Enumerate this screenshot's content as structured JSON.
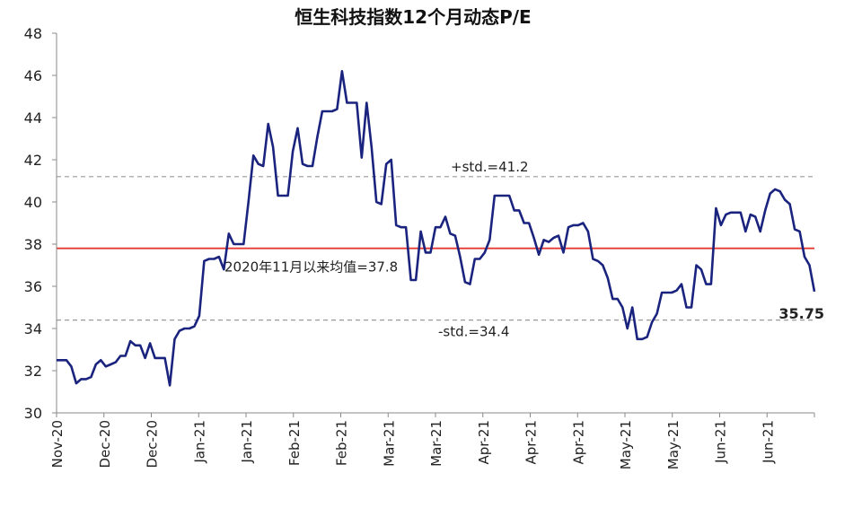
{
  "chart_data": {
    "type": "line",
    "title": "恒生科技指数12个月动态P/E",
    "xlabel": "",
    "ylabel": "",
    "ylim": [
      30,
      48
    ],
    "yticks": [
      30,
      32,
      34,
      36,
      38,
      40,
      42,
      44,
      46,
      48
    ],
    "xtick_labels": [
      "Nov-20",
      "Dec-20",
      "Dec-20",
      "Jan-21",
      "Jan-21",
      "Feb-21",
      "Feb-21",
      "Mar-21",
      "Mar-21",
      "Apr-21",
      "Apr-21",
      "Apr-21",
      "May-21",
      "May-21",
      "Jun-21",
      "Jun-21"
    ],
    "grid": false,
    "colors": {
      "series": "#1a237e",
      "mean": "#e53935",
      "std": "#999999"
    },
    "series": [
      {
        "values": [
          32.5,
          32.5,
          32.5,
          32.2,
          31.4,
          31.6,
          31.6,
          31.7,
          32.3,
          32.5,
          32.2,
          32.3,
          32.4,
          32.7,
          32.7,
          33.4,
          33.2,
          33.2,
          32.6,
          33.3,
          32.6,
          32.6,
          32.6,
          31.3,
          33.5,
          33.9,
          34.0,
          34.0,
          34.1,
          34.6,
          37.2,
          37.3,
          37.3,
          37.4,
          36.8,
          38.5,
          38.0,
          38.0,
          38.0,
          40.0,
          42.2,
          41.8,
          41.7,
          43.7,
          42.6,
          40.3,
          40.3,
          40.3,
          42.4,
          43.5,
          41.8,
          41.7,
          41.7,
          43.1,
          44.3,
          44.3,
          44.3,
          44.4,
          46.2,
          44.7,
          44.7,
          44.7,
          42.1,
          44.7,
          42.6,
          40.0,
          39.9,
          41.8,
          42.0,
          38.9,
          38.8,
          38.8,
          36.3,
          36.3,
          38.6,
          37.6,
          37.6,
          38.8,
          38.8,
          39.3,
          38.5,
          38.4,
          37.4,
          36.2,
          36.1,
          37.3,
          37.3,
          37.6,
          38.2,
          40.3,
          40.3,
          40.3,
          40.3,
          39.6,
          39.6,
          39.0,
          39.0,
          38.3,
          37.5,
          38.2,
          38.1,
          38.3,
          38.4,
          37.6,
          38.8,
          38.9,
          38.9,
          39.0,
          38.6,
          37.3,
          37.2,
          37.0,
          36.4,
          35.4,
          35.4,
          35.0,
          34.0,
          35.0,
          33.5,
          33.5,
          33.6,
          34.3,
          34.7,
          35.7,
          35.7,
          35.7,
          35.8,
          36.1,
          35.0,
          35.0,
          37.0,
          36.8,
          36.1,
          36.1,
          39.7,
          38.9,
          39.4,
          39.5,
          39.5,
          39.5,
          38.6,
          39.4,
          39.3,
          38.6,
          39.6,
          40.4,
          40.6,
          40.5,
          40.1,
          39.9,
          38.7,
          38.6,
          37.4,
          37.0,
          35.75
        ]
      }
    ],
    "reference_lines": [
      {
        "label": "+std.=41.2",
        "value": 41.2
      },
      {
        "label": "2020年11月以来均值=37.8",
        "value": 37.8
      },
      {
        "label": "-std.=34.4",
        "value": 34.4
      }
    ],
    "last_value_label": "35.75"
  }
}
